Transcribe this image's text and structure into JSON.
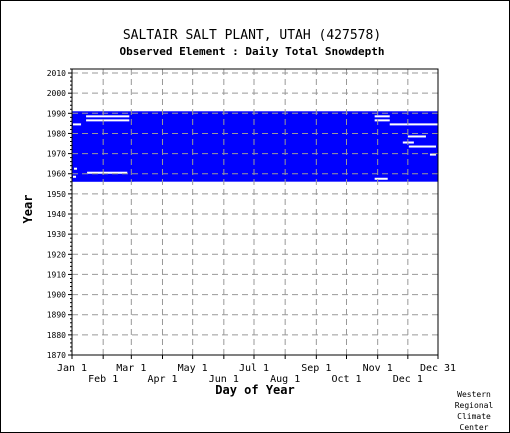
{
  "chart_data": {
    "type": "heatmap",
    "title": "SALTAIR SALT PLANT, UTAH   (427578)",
    "subtitle": "Observed Element : Daily Total Snowdepth",
    "xlabel": "Day of Year",
    "ylabel": "Year",
    "x_ticks_upper": [
      "Jan 1",
      "Mar 1",
      "May 1",
      "Jul 1",
      "Sep 1",
      "Nov 1",
      "Dec 31"
    ],
    "x_ticks_lower": [
      "Feb 1",
      "Apr 1",
      "Jun 1",
      "Aug 1",
      "Oct 1",
      "Dec 1"
    ],
    "x_tick_days": [
      1,
      32,
      60,
      91,
      121,
      152,
      182,
      213,
      244,
      274,
      305,
      335,
      365
    ],
    "y_ticks": [
      2010,
      2000,
      1990,
      1980,
      1970,
      1960,
      1950,
      1940,
      1930,
      1920,
      1910,
      1900,
      1890,
      1880,
      1870
    ],
    "xlim": [
      1,
      365
    ],
    "ylim": [
      1870,
      2012
    ],
    "grid": true,
    "data_color": "#0000ff",
    "coverage_blocks": [
      {
        "start_year": 1956,
        "end_year": 1990,
        "start_day": 1,
        "end_day": 365
      }
    ],
    "missing_segments": [
      {
        "year": 1988,
        "start_day": 15,
        "end_day": 57
      },
      {
        "year": 1986,
        "start_day": 15,
        "end_day": 57
      },
      {
        "year": 1988,
        "start_day": 302,
        "end_day": 316
      },
      {
        "year": 1986,
        "start_day": 302,
        "end_day": 316
      },
      {
        "year": 1960,
        "start_day": 16,
        "end_day": 55
      },
      {
        "year": 1957,
        "start_day": 302,
        "end_day": 314
      },
      {
        "year": 1955,
        "start_day": 62,
        "end_day": 365
      },
      {
        "year": 1984,
        "start_day": 317,
        "end_day": 365
      },
      {
        "year": 1978,
        "start_day": 335,
        "end_day": 352
      },
      {
        "year": 1975,
        "start_day": 330,
        "end_day": 340
      },
      {
        "year": 1973,
        "start_day": 336,
        "end_day": 362
      },
      {
        "year": 1969,
        "start_day": 357,
        "end_day": 362
      },
      {
        "year": 1984,
        "start_day": 2,
        "end_day": 9
      },
      {
        "year": 1958,
        "start_day": 2,
        "end_day": 4
      },
      {
        "year": 1962,
        "start_day": 3,
        "end_day": 5
      }
    ]
  },
  "credit": [
    "Western",
    "Regional",
    "Climate",
    "Center"
  ]
}
